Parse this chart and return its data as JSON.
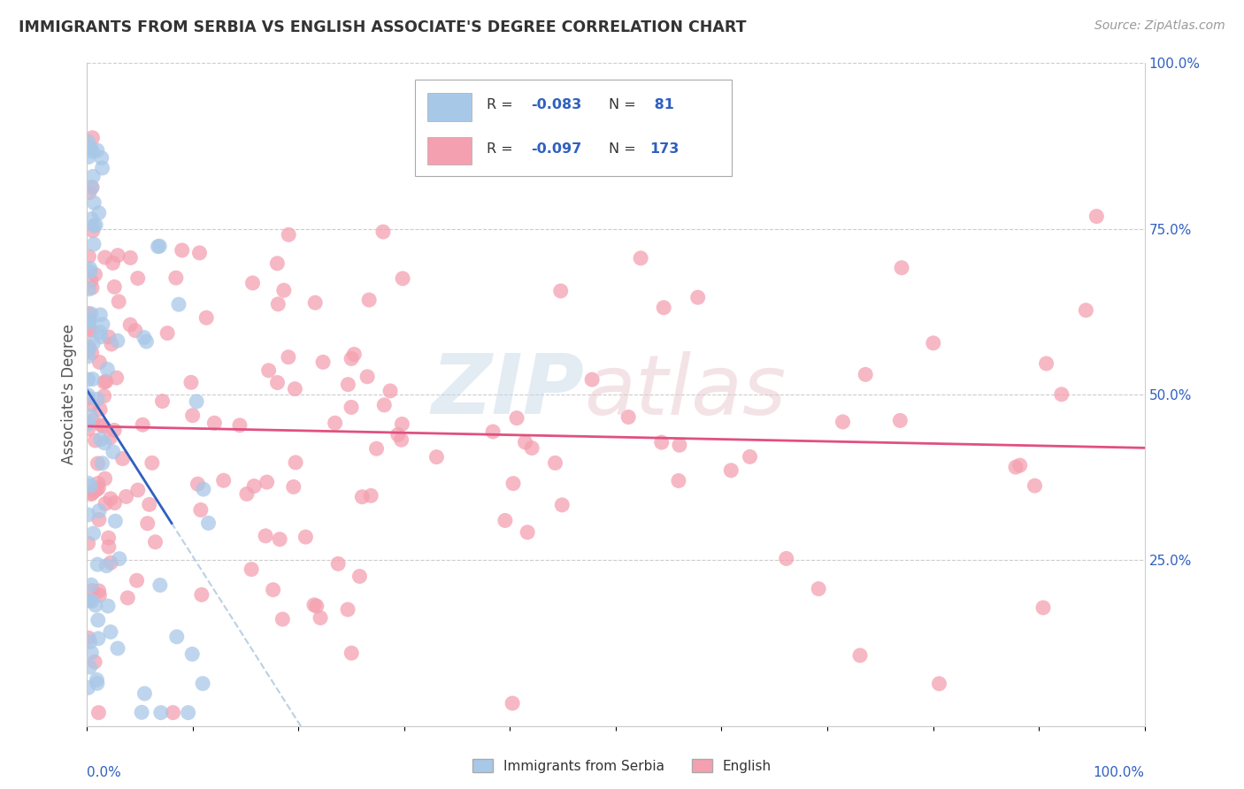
{
  "title": "IMMIGRANTS FROM SERBIA VS ENGLISH ASSOCIATE'S DEGREE CORRELATION CHART",
  "source_text": "Source: ZipAtlas.com",
  "ylabel": "Associate's Degree",
  "legend_label1": "Immigrants from Serbia",
  "legend_label2": "English",
  "color_blue": "#A8C8E8",
  "color_pink": "#F4A0B0",
  "color_blue_line": "#3060C0",
  "color_pink_line": "#E05080",
  "color_blue_dashed": "#B0C8E0",
  "color_text_blue": "#3060C0",
  "color_text_dark": "#333333",
  "color_grid": "#CCCCCC",
  "r1": -0.083,
  "n1": 81,
  "r2": -0.097,
  "n2": 173,
  "watermark_zip_color": "#C8D8E8",
  "watermark_atlas_color": "#E8C8D0"
}
